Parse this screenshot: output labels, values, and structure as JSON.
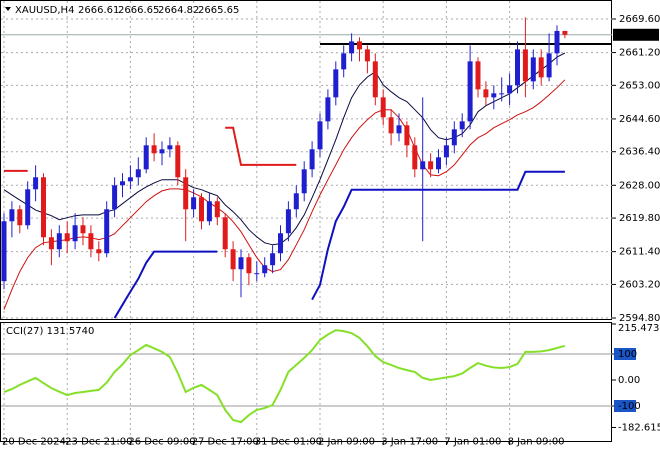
{
  "chart_data": {
    "type": "candlestick",
    "symbol": "XAUUSD,H4",
    "categories": [
      "20 Dec 2024",
      null,
      null,
      null,
      null,
      null,
      null,
      null,
      "23 Dec 21:00",
      null,
      null,
      null,
      null,
      null,
      null,
      null,
      "26 Dec 09:00",
      null,
      null,
      null,
      null,
      null,
      null,
      null,
      "27 Dec 17:00",
      null,
      null,
      null,
      null,
      null,
      null,
      null,
      "31 Dec 01:00",
      null,
      null,
      null,
      null,
      null,
      null,
      null,
      "2 Jan 09:00",
      null,
      null,
      null,
      null,
      null,
      null,
      null,
      "3 Jan 17:00",
      null,
      null,
      null,
      null,
      null,
      null,
      null,
      "7 Jan 01:00",
      null,
      null,
      null,
      null,
      null,
      null,
      null,
      "8 Jan 09:00",
      null,
      null,
      null,
      null,
      null,
      null,
      null
    ],
    "open": [
      2604,
      2619,
      2622,
      2618,
      2627,
      2630,
      2615,
      2612,
      2616,
      2614,
      2618,
      2616,
      2612,
      2611,
      2622,
      2628,
      2629,
      2630,
      2632,
      2638,
      2636,
      2637,
      2638,
      2630,
      2622,
      2625,
      2619,
      2624,
      2620,
      2612,
      2607,
      2610,
      2606,
      2606,
      2608,
      2611,
      2616,
      2622,
      2626,
      2632,
      2637,
      2644,
      2650,
      2657,
      2661,
      2664,
      2662,
      2659,
      2650,
      2645,
      2641,
      2643,
      2638,
      2632,
      2634,
      2632,
      2635,
      2638,
      2642,
      2644,
      2659,
      2652,
      2650,
      2651,
      2651,
      2653,
      2662,
      2654,
      2660,
      2655,
      2661,
      2666.61
    ],
    "high": [
      2621,
      2624,
      2623,
      2629,
      2633,
      2631,
      2617,
      2618,
      2619,
      2621,
      2620,
      2618,
      2614,
      2624,
      2630,
      2631,
      2633,
      2635,
      2640,
      2641,
      2639,
      2640,
      2639,
      2632,
      2627,
      2626,
      2626,
      2625,
      2621,
      2614,
      2612,
      2611,
      2609,
      2610,
      2613,
      2618,
      2624,
      2628,
      2634,
      2639,
      2646,
      2652,
      2659,
      2663,
      2666,
      2665,
      2663,
      2661,
      2652,
      2647,
      2646,
      2644,
      2640,
      2650,
      2636,
      2637,
      2640,
      2644,
      2646,
      2663,
      2660,
      2654,
      2653,
      2655,
      2656,
      2664,
      2670,
      2662,
      2662,
      2666,
      2668,
      2666.65
    ],
    "low": [
      2602,
      2615,
      2616,
      2617,
      2624,
      2613,
      2608,
      2610,
      2611,
      2612,
      2613,
      2610,
      2609,
      2610,
      2620,
      2625,
      2627,
      2628,
      2631,
      2634,
      2633,
      2635,
      2628,
      2614,
      2620,
      2617,
      2618,
      2618,
      2610,
      2604,
      2600,
      2603,
      2604,
      2605,
      2606,
      2609,
      2614,
      2620,
      2624,
      2630,
      2635,
      2642,
      2648,
      2655,
      2659,
      2659,
      2656,
      2648,
      2643,
      2638,
      2639,
      2635,
      2630,
      2614,
      2630,
      2631,
      2633,
      2636,
      2640,
      2642,
      2650,
      2648,
      2647,
      2649,
      2648,
      2651,
      2650,
      2652,
      2653,
      2654,
      2658,
      2664.82
    ],
    "close": [
      2619,
      2622,
      2618,
      2627,
      2630,
      2615,
      2612,
      2616,
      2614,
      2618,
      2616,
      2612,
      2611,
      2622,
      2628,
      2629,
      2630,
      2632,
      2638,
      2636,
      2637,
      2638,
      2630,
      2622,
      2625,
      2619,
      2624,
      2620,
      2612,
      2607,
      2610,
      2606,
      2606,
      2608,
      2611,
      2616,
      2622,
      2626,
      2632,
      2637,
      2644,
      2650,
      2657,
      2661,
      2664,
      2662,
      2659,
      2650,
      2645,
      2641,
      2643,
      2638,
      2632,
      2634,
      2632,
      2635,
      2638,
      2642,
      2644,
      2659,
      2652,
      2650,
      2651,
      2651,
      2653,
      2662,
      2654,
      2660,
      2655,
      2661,
      2666.6,
      2665.65
    ],
    "up_color": "#1f1fd0",
    "down_color": "#e01b1b",
    "ma_fast": {
      "color": "#0a0a40",
      "values": [
        2626.9,
        2625.6,
        2624.3,
        2623.1,
        2621.8,
        2621.1,
        2620.4,
        2619.4,
        2619.9,
        2620.4,
        2620.6,
        2620.6,
        2620.6,
        2621.4,
        2621.9,
        2623.4,
        2624.9,
        2626.4,
        2627.6,
        2628.6,
        2629.4,
        2629.4,
        2629.4,
        2628.4,
        2627.4,
        2626.9,
        2626.1,
        2625.4,
        2623.1,
        2621.4,
        2619.4,
        2616.9,
        2615.1,
        2613.6,
        2613.1,
        2613.4,
        2614.9,
        2617.4,
        2620.6,
        2624.9,
        2629.4,
        2634.4,
        2639.4,
        2644.9,
        2649.9,
        2653.1,
        2655.1,
        2656.4,
        2653.1,
        2651.4,
        2649.9,
        2648.9,
        2646.9,
        2644.9,
        2641.9,
        2639.9,
        2639.4,
        2639.9,
        2640.9,
        2643.1,
        2646.4,
        2647.9,
        2648.9,
        2649.9,
        2650.9,
        2652.4,
        2653.9,
        2655.4,
        2656.9,
        2658.4,
        2660.1,
        2661.1
      ]
    },
    "ma_slow": {
      "color": "#d01010",
      "values": [
        2596.9,
        2601.9,
        2606.4,
        2609.9,
        2612.4,
        2613.6,
        2613.9,
        2614.1,
        2614.4,
        2614.9,
        2615.1,
        2614.9,
        2614.4,
        2614.9,
        2615.9,
        2617.9,
        2619.9,
        2621.9,
        2623.9,
        2625.4,
        2626.6,
        2627.1,
        2627.1,
        2626.9,
        2626.1,
        2625.1,
        2623.6,
        2622.4,
        2620.9,
        2618.9,
        2616.4,
        2613.1,
        2609.9,
        2607.4,
        2606.4,
        2606.9,
        2609.4,
        2613.1,
        2616.9,
        2621.4,
        2625.6,
        2629.4,
        2633.1,
        2636.9,
        2639.9,
        2642.4,
        2644.4,
        2646.1,
        2646.9,
        2646.9,
        2644.9,
        2641.9,
        2637.4,
        2633.1,
        2630.6,
        2630.4,
        2631.4,
        2633.1,
        2635.6,
        2638.1,
        2639.9,
        2640.9,
        2642.4,
        2643.4,
        2644.4,
        2645.6,
        2646.4,
        2647.4,
        2648.9,
        2650.6,
        2652.4,
        2654.4
      ]
    },
    "stop_upper": {
      "color": "#e01b1b",
      "values": [
        2631.6,
        2631.6,
        2631.6,
        2631.6,
        null,
        null,
        null,
        null,
        null,
        null,
        null,
        null,
        null,
        null,
        null,
        null,
        null,
        null,
        null,
        null,
        null,
        null,
        null,
        null,
        null,
        null,
        null,
        null,
        2642.4,
        2642.4,
        2633.1,
        2633.1,
        2633.1,
        2633.1,
        2633.1,
        2633.1,
        2633.1,
        2633.1,
        null,
        null,
        null,
        null,
        null,
        null,
        null,
        null,
        null,
        null,
        null,
        null,
        null,
        null,
        null,
        null,
        null,
        null,
        null,
        null,
        null,
        null,
        null,
        null,
        null,
        null,
        null,
        null,
        null,
        null,
        null,
        null,
        null,
        null
      ]
    },
    "stop_lower": {
      "color": "#1010c0",
      "values": [
        null,
        null,
        null,
        null,
        null,
        null,
        null,
        null,
        null,
        null,
        null,
        null,
        null,
        null,
        2594.8,
        2598.1,
        2601.4,
        2604.6,
        2608.6,
        2611.4,
        2611.4,
        2611.4,
        2611.4,
        2611.4,
        2611.4,
        2611.4,
        2611.4,
        2611.4,
        null,
        null,
        null,
        null,
        null,
        null,
        null,
        null,
        null,
        null,
        null,
        2599.4,
        2603.1,
        2612,
        2619,
        2622.6,
        2626.9,
        2626.9,
        2626.9,
        2626.9,
        2626.9,
        2626.9,
        2626.9,
        2626.9,
        2626.9,
        2626.9,
        2626.9,
        2626.9,
        2626.9,
        2626.9,
        2626.9,
        2626.9,
        2626.9,
        2626.9,
        2626.9,
        2626.9,
        2626.9,
        2626.9,
        2631.4,
        2631.4,
        2631.4,
        2631.4,
        2631.4,
        2631.4
      ]
    },
    "level": 2663.35,
    "ylim": [
      2594.8,
      2673.35
    ],
    "yticks": [
      {
        "value": 2669.6,
        "label": "2669.60"
      },
      {
        "value": 2661.2,
        "label": "2661.20"
      },
      {
        "value": 2653,
        "label": "2653.00"
      },
      {
        "value": 2644.6,
        "label": "2644.60"
      },
      {
        "value": 2636.4,
        "label": "2636.40"
      },
      {
        "value": 2628,
        "label": "2628.00"
      },
      {
        "value": 2619.8,
        "label": "2619.80"
      },
      {
        "value": 2611.4,
        "label": "2611.40"
      },
      {
        "value": 2603.2,
        "label": "2603.20"
      },
      {
        "value": 2594.8,
        "label": "2594.80"
      }
    ],
    "grid": true,
    "cci": {
      "label": "CCI(27) 131.5740",
      "color": "#86e02a",
      "values": [
        -46,
        -35,
        -19,
        -5,
        8,
        -12,
        -31,
        -45,
        -58,
        -50,
        -46,
        -42,
        -38,
        -10,
        31,
        60,
        96,
        115,
        135,
        122,
        108,
        88,
        27,
        -46,
        -30,
        -19,
        -38,
        -58,
        -115,
        -154,
        -162,
        -135,
        -115,
        -108,
        -96,
        -38,
        31,
        58,
        85,
        115,
        154,
        175,
        192,
        188,
        180,
        162,
        130,
        92,
        69,
        58,
        46,
        38,
        31,
        8,
        0,
        5,
        10,
        15,
        25,
        46,
        65,
        55,
        48,
        46,
        50,
        62,
        108,
        108,
        110,
        115,
        123,
        131.574
      ],
      "ylim": [
        -230.8,
        215.4
      ],
      "yticks": [
        215.4735,
        100,
        {
          "value": 0,
          "label": "0.00"
        },
        -100,
        -182.6154
      ],
      "levels": [
        100,
        -100
      ]
    }
  }
}
